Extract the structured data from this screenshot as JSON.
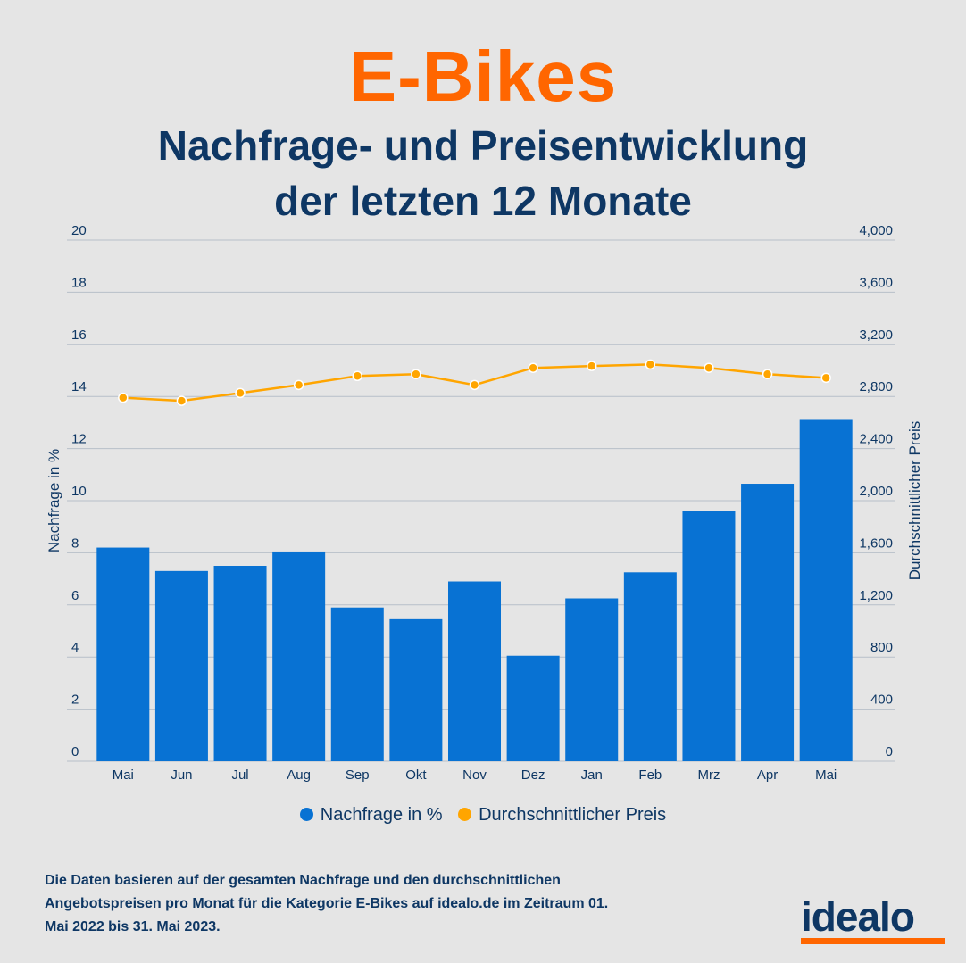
{
  "title": "E-Bikes",
  "subtitle_line1": "Nachfrage- und Preisentwicklung",
  "subtitle_line2": "der letzten 12 Monate",
  "chart_data": {
    "type": "bar+line",
    "categories": [
      "Mai",
      "Jun",
      "Jul",
      "Aug",
      "Sep",
      "Okt",
      "Nov",
      "Dez",
      "Jan",
      "Feb",
      "Mrz",
      "Apr",
      "Mai"
    ],
    "series": [
      {
        "name": "Nachfrage in %",
        "type": "bar",
        "axis": "left",
        "color": "#0872d3",
        "values": [
          8.2,
          7.3,
          7.5,
          8.05,
          5.9,
          5.45,
          6.9,
          4.05,
          6.25,
          7.25,
          9.6,
          10.65,
          13.1
        ]
      },
      {
        "name": "Durchschnittlicher Preis",
        "type": "line",
        "axis": "right",
        "color": "#ffa500",
        "values": [
          2790,
          2766,
          2826,
          2888,
          2957,
          2971,
          2888,
          3019,
          3033,
          3045,
          3019,
          2971,
          2943
        ]
      }
    ],
    "ylabel": "Nachfrage in %",
    "y2label": "Durchschnittlicher Preis",
    "ylim": [
      0,
      20
    ],
    "y2lim": [
      0,
      4000
    ],
    "yticks": [
      "0",
      "2",
      "4",
      "6",
      "8",
      "10",
      "12",
      "14",
      "16",
      "18",
      "20"
    ],
    "y2ticks": [
      "0",
      "400",
      "800",
      "1,200",
      "1,600",
      "2,000",
      "2,400",
      "2,800",
      "3,200",
      "3,600",
      "4,000"
    ],
    "grid": true,
    "legend": "bottom"
  },
  "note": "Die Daten basieren auf der gesamten Nachfrage und den durchschnittlichen Angebotspreisen pro Monat für die Kategorie E-Bikes auf idealo.de im Zeitraum 01. Mai 2022 bis 31. Mai 2023.",
  "logo": "idealo"
}
